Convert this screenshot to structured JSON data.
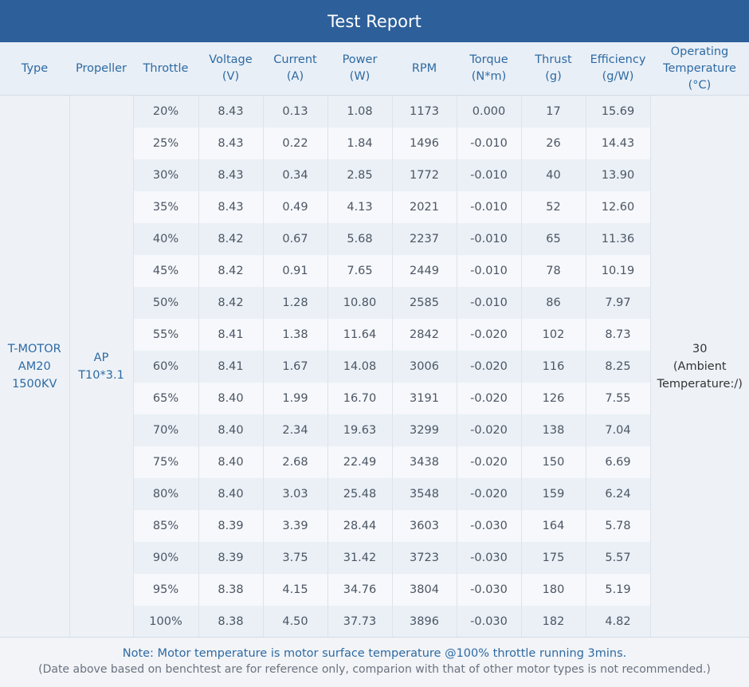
{
  "title": "Test Report",
  "columns": [
    [
      "Type"
    ],
    [
      "Propeller"
    ],
    [
      "Throttle"
    ],
    [
      "Voltage",
      "(V)"
    ],
    [
      "Current",
      "(A)"
    ],
    [
      "Power",
      "(W)"
    ],
    [
      "RPM"
    ],
    [
      "Torque",
      "(N*m)"
    ],
    [
      "Thrust",
      "(g)"
    ],
    [
      "Efficiency",
      "(g/W)"
    ],
    [
      "Operating",
      "Temperature",
      "(°C)"
    ]
  ],
  "type_lines": [
    "T-MOTOR",
    "AM20",
    "1500KV"
  ],
  "propeller_lines": [
    "AP",
    "T10*3.1"
  ],
  "temperature_lines": [
    "30",
    "(Ambient",
    "Temperature:/)"
  ],
  "rows": [
    [
      "20%",
      "8.43",
      "0.13",
      "1.08",
      "1173",
      "0.000",
      "17",
      "15.69"
    ],
    [
      "25%",
      "8.43",
      "0.22",
      "1.84",
      "1496",
      "-0.010",
      "26",
      "14.43"
    ],
    [
      "30%",
      "8.43",
      "0.34",
      "2.85",
      "1772",
      "-0.010",
      "40",
      "13.90"
    ],
    [
      "35%",
      "8.43",
      "0.49",
      "4.13",
      "2021",
      "-0.010",
      "52",
      "12.60"
    ],
    [
      "40%",
      "8.42",
      "0.67",
      "5.68",
      "2237",
      "-0.010",
      "65",
      "11.36"
    ],
    [
      "45%",
      "8.42",
      "0.91",
      "7.65",
      "2449",
      "-0.010",
      "78",
      "10.19"
    ],
    [
      "50%",
      "8.42",
      "1.28",
      "10.80",
      "2585",
      "-0.010",
      "86",
      "7.97"
    ],
    [
      "55%",
      "8.41",
      "1.38",
      "11.64",
      "2842",
      "-0.020",
      "102",
      "8.73"
    ],
    [
      "60%",
      "8.41",
      "1.67",
      "14.08",
      "3006",
      "-0.020",
      "116",
      "8.25"
    ],
    [
      "65%",
      "8.40",
      "1.99",
      "16.70",
      "3191",
      "-0.020",
      "126",
      "7.55"
    ],
    [
      "70%",
      "8.40",
      "2.34",
      "19.63",
      "3299",
      "-0.020",
      "138",
      "7.04"
    ],
    [
      "75%",
      "8.40",
      "2.68",
      "22.49",
      "3438",
      "-0.020",
      "150",
      "6.69"
    ],
    [
      "80%",
      "8.40",
      "3.03",
      "25.48",
      "3548",
      "-0.020",
      "159",
      "6.24"
    ],
    [
      "85%",
      "8.39",
      "3.39",
      "28.44",
      "3603",
      "-0.030",
      "164",
      "5.78"
    ],
    [
      "90%",
      "8.39",
      "3.75",
      "31.42",
      "3723",
      "-0.030",
      "175",
      "5.57"
    ],
    [
      "95%",
      "8.38",
      "4.15",
      "34.76",
      "3804",
      "-0.030",
      "180",
      "5.19"
    ],
    [
      "100%",
      "8.38",
      "4.50",
      "37.73",
      "3896",
      "-0.030",
      "182",
      "4.82"
    ]
  ],
  "note": "Note: Motor temperature is motor surface temperature @100% throttle running 3mins.",
  "disclaimer": "(Date above based on benchtest are for reference only, comparion with that of other motor types is not recommended.)"
}
